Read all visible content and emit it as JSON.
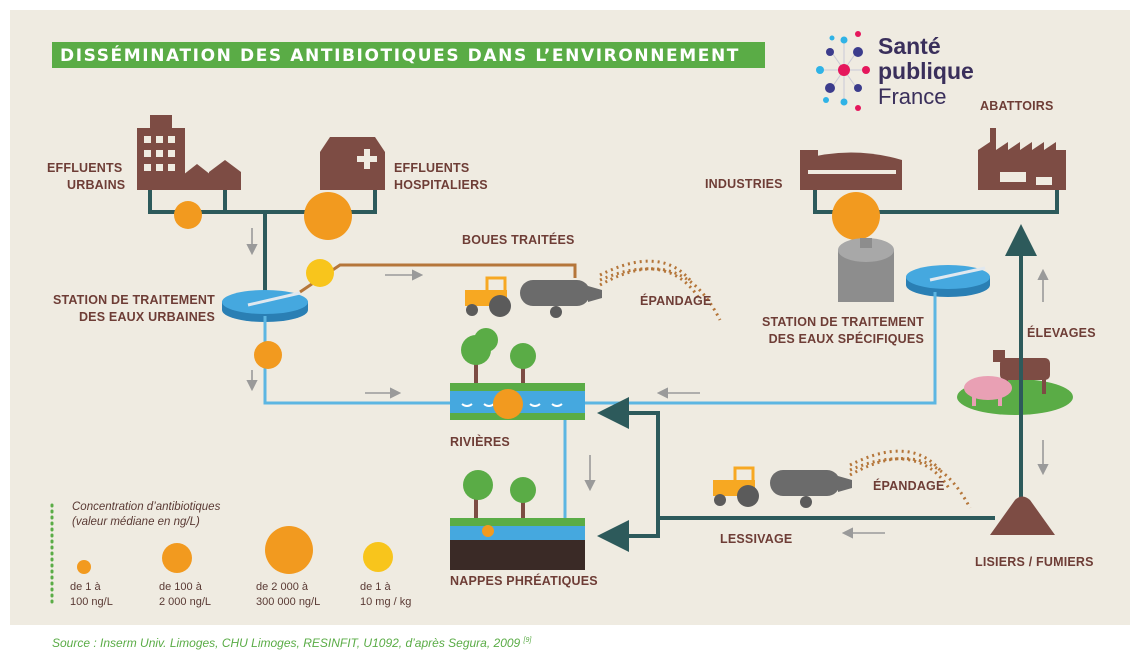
{
  "header": {
    "title": "DISSÉMINATION DES ANTIBIOTIQUES DANS L’ENVIRONNEMENT"
  },
  "logo": {
    "lines": [
      "Santé",
      "publique",
      "France"
    ]
  },
  "nodes": [
    {
      "lines": [
        "EFFLUENTS",
        "URBAINS"
      ]
    },
    {
      "lines": [
        "EFFLUENTS",
        "HOSPITALIERS"
      ]
    },
    {
      "lines": [
        "STATION DE TRAITEMENT",
        "DES EAUX URBAINES"
      ]
    },
    {
      "lines": [
        "BOUES TRAITÉES"
      ]
    },
    {
      "lines": [
        "ÉPANDAGE"
      ]
    },
    {
      "lines": [
        "INDUSTRIES"
      ]
    },
    {
      "lines": [
        "ABATTOIRS"
      ]
    },
    {
      "lines": [
        "STATION DE TRAITEMENT",
        "DES EAUX SPÉCIFIQUES"
      ]
    },
    {
      "lines": [
        "ÉLEVAGES"
      ]
    },
    {
      "lines": [
        "RIVIÈRES"
      ]
    },
    {
      "lines": [
        "NAPPES PHRÉATIQUES"
      ]
    },
    {
      "lines": [
        "ÉPANDAGE"
      ]
    },
    {
      "lines": [
        "LESSIVAGE"
      ]
    },
    {
      "lines": [
        "LISIERS / FUMIERS"
      ]
    }
  ],
  "legend": {
    "title": [
      "Concentration d’antibiotiques",
      "(valeur médiane en ng/L)"
    ],
    "items": [
      {
        "lines": [
          "de 1 à",
          "100 ng/L"
        ]
      },
      {
        "lines": [
          "de 100 à",
          "2 000 ng/L"
        ]
      },
      {
        "lines": [
          "de 2 000 à",
          "300 000 ng/L"
        ]
      },
      {
        "lines": [
          "de 1 à",
          "10 mg / kg"
        ]
      }
    ]
  },
  "source": {
    "text": "Source : Inserm Univ. Limoges, CHU Limoges, RESINFIT, U1092, d’après Segura, 2009 ",
    "ref": "[9]"
  }
}
